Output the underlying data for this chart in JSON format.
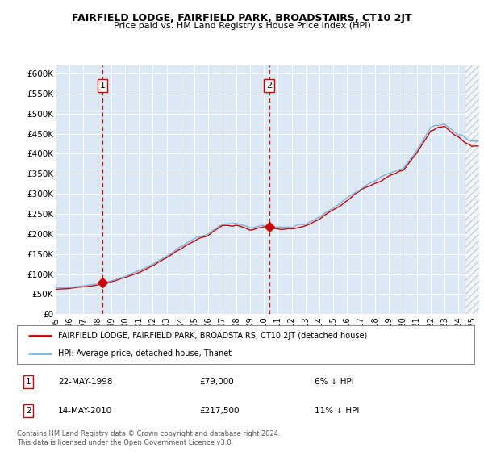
{
  "title": "FAIRFIELD LODGE, FAIRFIELD PARK, BROADSTAIRS, CT10 2JT",
  "subtitle": "Price paid vs. HM Land Registry's House Price Index (HPI)",
  "background_color": "#dce6f0",
  "plot_bg_color": "#dce9f5",
  "hpi_color": "#7ab3e0",
  "price_color": "#cc0000",
  "dashed_line_color": "#cc0000",
  "sale1_x": 1998.37,
  "sale1_y": 79000,
  "sale1_label": "1",
  "sale2_x": 2010.37,
  "sale2_y": 217500,
  "sale2_label": "2",
  "legend_house": "FAIRFIELD LODGE, FAIRFIELD PARK, BROADSTAIRS, CT10 2JT (detached house)",
  "legend_hpi": "HPI: Average price, detached house, Thanet",
  "note1_label": "1",
  "note1_date": "22-MAY-1998",
  "note1_price": "£79,000",
  "note1_pct": "6% ↓ HPI",
  "note2_label": "2",
  "note2_date": "14-MAY-2010",
  "note2_price": "£217,500",
  "note2_pct": "11% ↓ HPI",
  "footer": "Contains HM Land Registry data © Crown copyright and database right 2024.\nThis data is licensed under the Open Government Licence v3.0.",
  "ylim": [
    0,
    620000
  ],
  "yticks": [
    0,
    50000,
    100000,
    150000,
    200000,
    250000,
    300000,
    350000,
    400000,
    450000,
    500000,
    550000,
    600000
  ],
  "ytick_labels": [
    "£0",
    "£50K",
    "£100K",
    "£150K",
    "£200K",
    "£250K",
    "£300K",
    "£350K",
    "£400K",
    "£450K",
    "£500K",
    "£550K",
    "£600K"
  ],
  "xlim_left": 1995,
  "xlim_right": 2025.5,
  "xtick_years": [
    1995,
    1996,
    1997,
    1998,
    1999,
    2000,
    2001,
    2002,
    2003,
    2004,
    2005,
    2006,
    2007,
    2008,
    2009,
    2010,
    2011,
    2012,
    2013,
    2014,
    2015,
    2016,
    2017,
    2018,
    2019,
    2020,
    2021,
    2022,
    2023,
    2024,
    2025
  ]
}
